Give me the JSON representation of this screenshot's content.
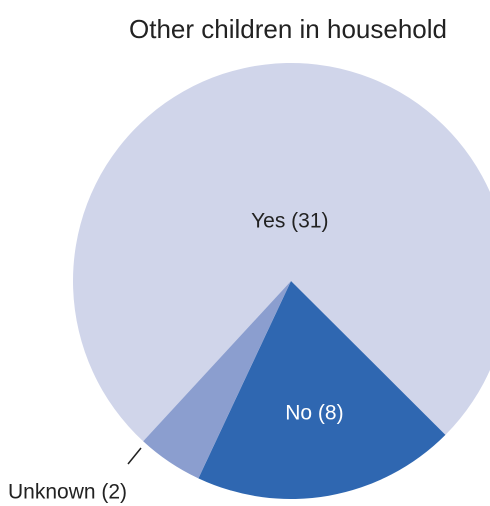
{
  "chart_data": {
    "type": "pie",
    "title": "Other children in household",
    "slices": [
      {
        "label": "Yes (31)",
        "category": "Yes",
        "value": 31,
        "color": "#d0d5ea",
        "text_color": "#222222"
      },
      {
        "label": "No (8)",
        "category": "No",
        "value": 8,
        "color": "#2f67b1",
        "text_color": "#ffffff"
      },
      {
        "label": "Unknown (2)",
        "category": "Unknown",
        "value": 2,
        "color": "#8b9ecf",
        "text_color": "#222222"
      }
    ],
    "legend": "none"
  }
}
